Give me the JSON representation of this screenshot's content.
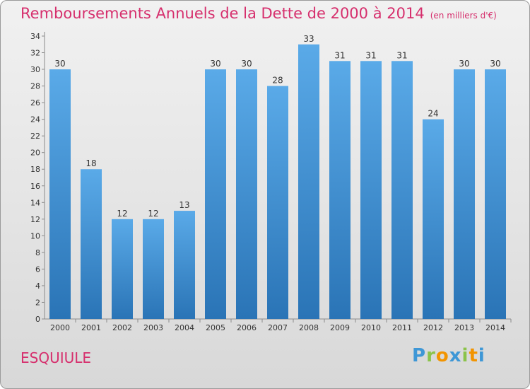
{
  "header": {
    "title": "Remboursements Annuels de la Dette de 2000 à 2014",
    "unit": "(en milliers d'€)"
  },
  "commune": "ESQUIULE",
  "logo": {
    "text": "Proxiti",
    "letters": [
      "P",
      "r",
      "o",
      "x",
      "i",
      "t",
      "i"
    ],
    "colors": [
      "#3e97d6",
      "#8bc34a",
      "#f29400",
      "#3e97d6",
      "#8bc34a",
      "#f29400",
      "#3e97d6"
    ]
  },
  "colors": {
    "title": "#d62f6d",
    "bar_light": "#5aaae8",
    "bar_dark": "#2a74b6"
  },
  "chart_data": {
    "type": "bar",
    "categories": [
      "2000",
      "2001",
      "2002",
      "2003",
      "2004",
      "2005",
      "2006",
      "2007",
      "2008",
      "2009",
      "2010",
      "2011",
      "2012",
      "2013",
      "2014"
    ],
    "values": [
      30,
      18,
      12,
      12,
      13,
      30,
      30,
      28,
      33,
      31,
      31,
      31,
      24,
      30,
      30
    ],
    "ylim": [
      0,
      34
    ],
    "yticks": [
      0,
      2,
      4,
      6,
      8,
      10,
      12,
      14,
      16,
      18,
      20,
      22,
      24,
      26,
      28,
      30,
      32,
      34
    ],
    "grid": false,
    "legend": "none"
  }
}
